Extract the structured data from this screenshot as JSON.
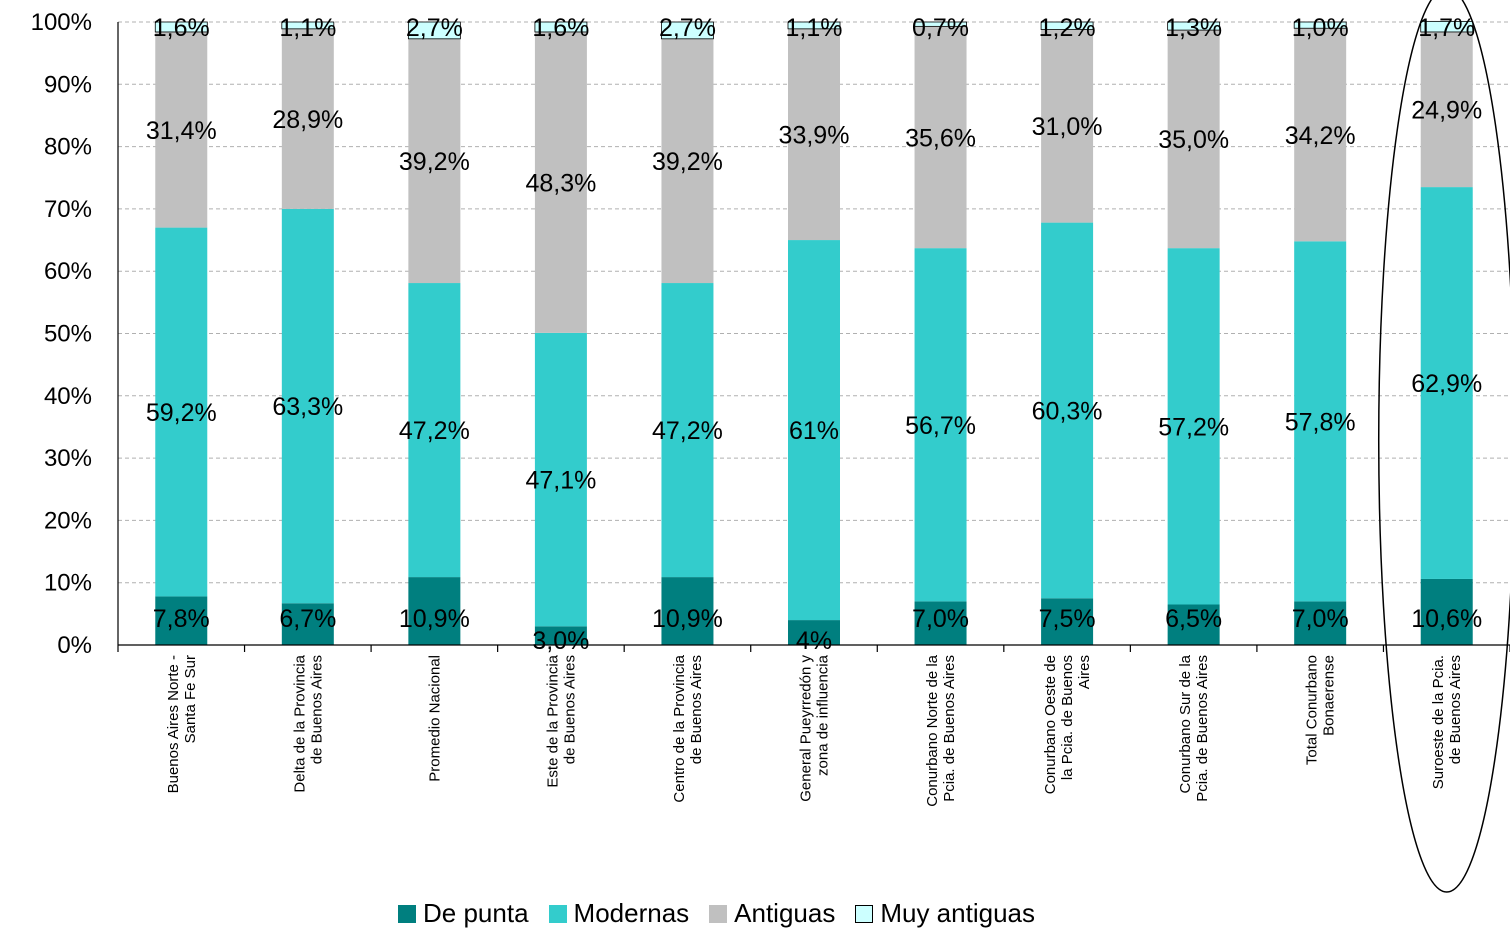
{
  "chart_data": {
    "type": "bar",
    "stacked": true,
    "percent_stacked": true,
    "title": "",
    "xlabel": "",
    "ylabel": "",
    "ylim": [
      0,
      100
    ],
    "yticks": [
      "0%",
      "10%",
      "20%",
      "30%",
      "40%",
      "50%",
      "60%",
      "70%",
      "80%",
      "90%",
      "100%"
    ],
    "grid": true,
    "legend_position": "bottom",
    "highlighted_category_index": 10,
    "categories": [
      [
        "Buenos Aires Norte -",
        "Santa Fe Sur"
      ],
      [
        "Delta de la Provincia",
        "de Buenos Aires"
      ],
      [
        "Promedio Nacional"
      ],
      [
        "Este de la Provincia",
        "de Buenos Aires"
      ],
      [
        "Centro de la Provincia",
        "de Buenos Aires"
      ],
      [
        "General Pueyrredón y",
        "zona de influencia"
      ],
      [
        "Conurbano Norte de la",
        "Pcia. de Buenos Aires"
      ],
      [
        "Conurbano Oeste de",
        "la Pcia. de Buenos",
        "Aires"
      ],
      [
        "Conurbano Sur de la",
        "Pcia. de Buenos Aires"
      ],
      [
        "Total Conurbano",
        "Bonaerense"
      ],
      [
        "Suroeste de la Pcia.",
        "de Buenos Aires"
      ]
    ],
    "series": [
      {
        "name": "De punta",
        "color": "#007f7f",
        "values": [
          7.8,
          6.7,
          10.9,
          3.0,
          10.9,
          4,
          7.0,
          7.5,
          6.5,
          7.0,
          10.6
        ],
        "labels": [
          "7,8%",
          "6,7%",
          "10,9%",
          "3,0%",
          "10,9%",
          "4%",
          "7,0%",
          "7,5%",
          "6,5%",
          "7,0%",
          "10,6%"
        ]
      },
      {
        "name": "Modernas",
        "color": "#33cccc",
        "values": [
          59.2,
          63.3,
          47.2,
          47.1,
          47.2,
          61,
          56.7,
          60.3,
          57.2,
          57.8,
          62.9
        ],
        "labels": [
          "59,2%",
          "63,3%",
          "47,2%",
          "47,1%",
          "47,2%",
          "61%",
          "56,7%",
          "60,3%",
          "57,2%",
          "57,8%",
          "62,9%"
        ]
      },
      {
        "name": "Antiguas",
        "color": "#c0c0c0",
        "values": [
          31.4,
          28.9,
          39.2,
          48.3,
          39.2,
          33.9,
          35.6,
          31.0,
          35.0,
          34.2,
          24.9
        ],
        "labels": [
          "31,4%",
          "28,9%",
          "39,2%",
          "48,3%",
          "39,2%",
          "33,9%",
          "35,6%",
          "31,0%",
          "35,0%",
          "34,2%",
          "24,9%"
        ]
      },
      {
        "name": "Muy antiguas",
        "color": "#ccffff",
        "values": [
          1.6,
          1.1,
          2.7,
          1.6,
          2.7,
          1.1,
          0.7,
          1.2,
          1.3,
          1.0,
          1.7
        ],
        "labels": [
          "1,6%",
          "1,1%",
          "2,7%",
          "1,6%",
          "2,7%",
          "1,1%",
          "0,7%",
          "1,2%",
          "1,3%",
          "1,0%",
          "1,7%"
        ]
      }
    ]
  }
}
